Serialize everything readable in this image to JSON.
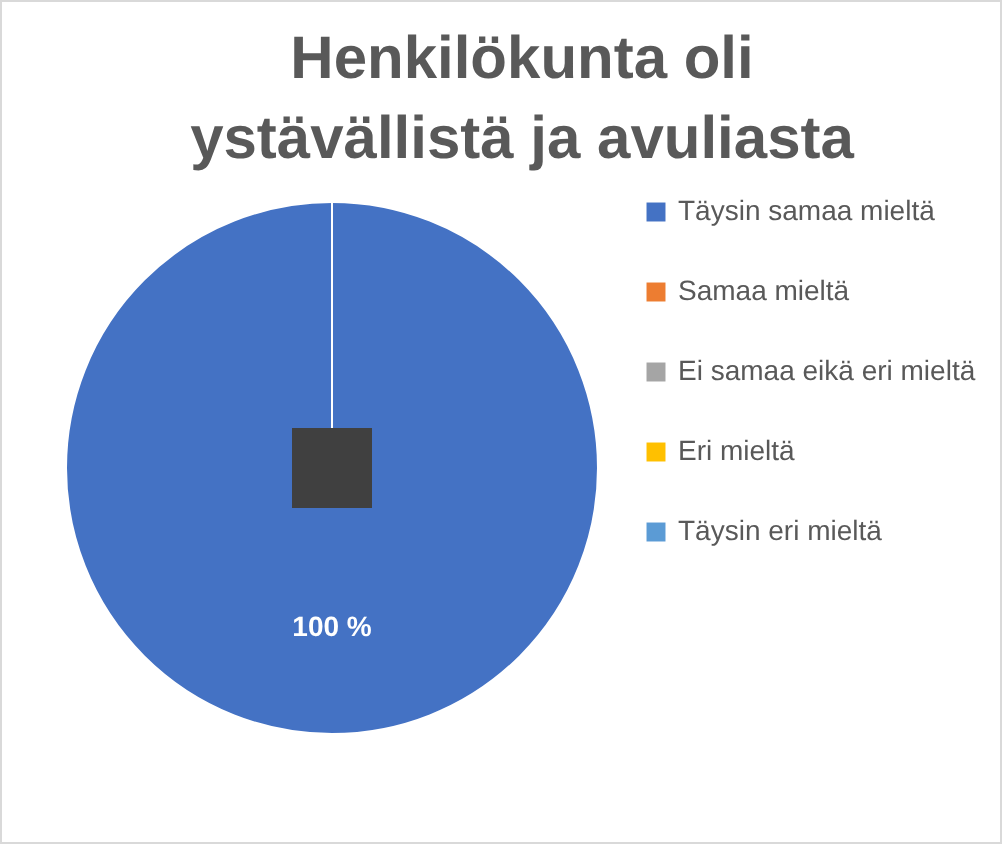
{
  "chart_data": {
    "type": "pie",
    "title": "Henkilökunta oli ystävällistä ja avuliasta",
    "categories": [
      "Täysin samaa mieltä",
      "Samaa mieltä",
      "Ei samaa eikä eri mieltä",
      "Eri mieltä",
      "Täysin eri mieltä"
    ],
    "values": [
      100,
      0,
      0,
      0,
      0
    ],
    "colors": [
      "#4472c4",
      "#ed7d31",
      "#a5a5a5",
      "#ffc000",
      "#5b9bd5"
    ],
    "value_labels": [
      "100 %",
      null,
      null,
      null,
      null
    ],
    "legend": "right"
  }
}
